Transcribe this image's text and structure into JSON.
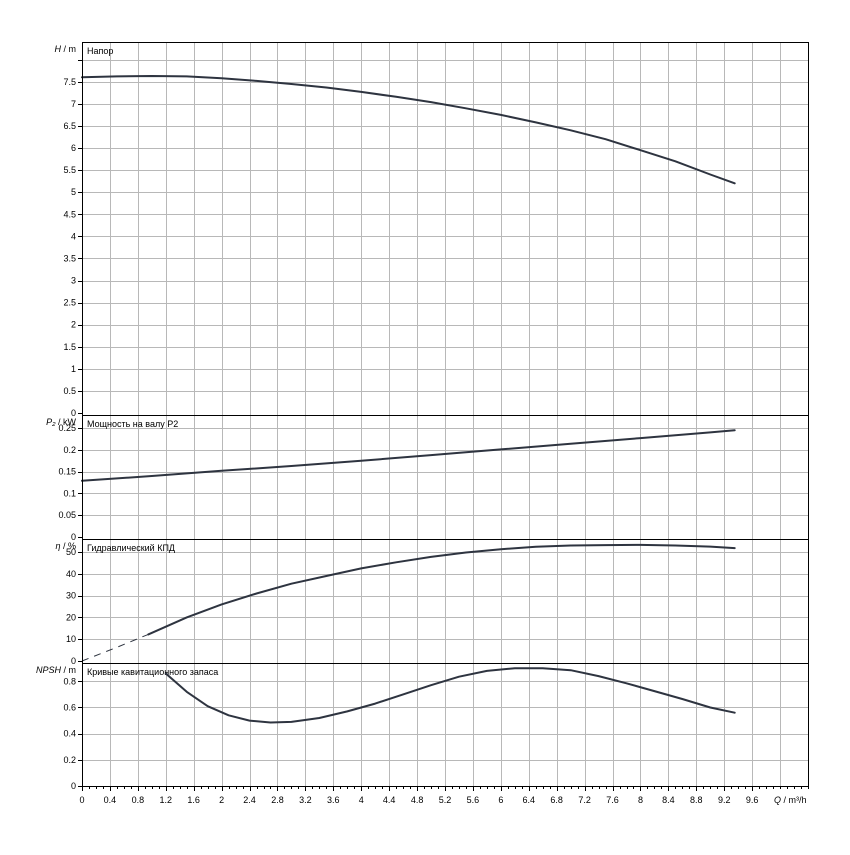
{
  "chart_data": {
    "type": "line",
    "x_axis": {
      "label_var": "Q",
      "label_unit": "m³/h",
      "range": [
        0,
        10.4
      ],
      "tick_labels": [
        "0",
        "0.4",
        "0.8",
        "1.2",
        "1.6",
        "2",
        "2.4",
        "2.8",
        "3.2",
        "3.6",
        "4",
        "4.4",
        "4.8",
        "5.2",
        "5.6",
        "6",
        "6.4",
        "6.8",
        "7.2",
        "7.6",
        "8",
        "8.4",
        "8.8",
        "9.2",
        "9.6"
      ],
      "grid_step": 0.4
    },
    "panels": [
      {
        "id": "head",
        "title": "Напор",
        "ylabel_var": "H",
        "ylabel_unit": "m",
        "ylim": [
          0,
          8.4
        ],
        "tick_step": 0.5,
        "tick_labels": [
          "0",
          "0.5",
          "1",
          "1.5",
          "2",
          "2.5",
          "3",
          "3.5",
          "4",
          "4.5",
          "5",
          "5.5",
          "6",
          "6.5",
          "7",
          "7.5"
        ],
        "series": [
          {
            "style": "solid",
            "x": [
              0,
              0.5,
              1,
              1.5,
              2,
              2.5,
              3,
              3.5,
              4,
              4.5,
              5,
              5.5,
              6,
              6.5,
              7,
              7.5,
              8,
              8.5,
              9,
              9.35
            ],
            "y": [
              7.6,
              7.62,
              7.63,
              7.62,
              7.58,
              7.52,
              7.45,
              7.37,
              7.27,
              7.16,
              7.04,
              6.9,
              6.75,
              6.58,
              6.4,
              6.2,
              5.95,
              5.7,
              5.4,
              5.2
            ]
          }
        ]
      },
      {
        "id": "power",
        "title": "Мощность на валу P2",
        "ylabel_var": "P₂",
        "ylabel_unit": "kW",
        "ylim": [
          0,
          0.28
        ],
        "tick_step": 0.05,
        "tick_labels": [
          "0",
          "0.05",
          "0.1",
          "0.15",
          "0.2",
          "0.25"
        ],
        "series": [
          {
            "style": "solid",
            "x": [
              0,
              1,
              2,
              3,
              4,
              5,
              6,
              7,
              8,
              9,
              9.35
            ],
            "y": [
              0.129,
              0.14,
              0.152,
              0.163,
              0.175,
              0.188,
              0.201,
              0.214,
              0.227,
              0.24,
              0.245
            ]
          }
        ]
      },
      {
        "id": "efficiency",
        "title": "Гидравлический КПД",
        "ylabel_var": "η",
        "ylabel_unit": "%",
        "ylim": [
          0,
          56
        ],
        "tick_step": 10,
        "tick_labels": [
          "0",
          "10",
          "20",
          "30",
          "40",
          "50"
        ],
        "series": [
          {
            "style": "dashed",
            "x": [
              0,
              0.5,
              0.95
            ],
            "y": [
              0,
              6.3,
              12.2
            ]
          },
          {
            "style": "solid",
            "x": [
              0.95,
              1.5,
              2,
              2.5,
              3,
              3.5,
              4,
              4.5,
              5,
              5.5,
              6,
              6.5,
              7,
              7.5,
              8,
              8.5,
              9,
              9.35
            ],
            "y": [
              12.2,
              20,
              26,
              31,
              35.5,
              39,
              42.5,
              45.3,
              47.8,
              49.8,
              51.3,
              52.4,
              53,
              53.2,
              53.3,
              53,
              52.5,
              51.8
            ]
          }
        ]
      },
      {
        "id": "npsh",
        "title": "Кривые кавитационного запаса",
        "ylabel_var": "NPSH",
        "ylabel_unit": "m",
        "ylim": [
          0,
          0.94
        ],
        "tick_step": 0.2,
        "tick_labels": [
          "0",
          "0.2",
          "0.4",
          "0.6",
          "0.8"
        ],
        "series": [
          {
            "style": "solid",
            "x": [
              1.2,
              1.5,
              1.8,
              2.1,
              2.4,
              2.7,
              3.0,
              3.4,
              3.8,
              4.2,
              4.6,
              5.0,
              5.4,
              5.8,
              6.2,
              6.6,
              7.0,
              7.4,
              7.8,
              8.2,
              8.6,
              9.0,
              9.35
            ],
            "y": [
              0.86,
              0.72,
              0.61,
              0.54,
              0.5,
              0.485,
              0.49,
              0.52,
              0.57,
              0.63,
              0.7,
              0.77,
              0.835,
              0.88,
              0.9,
              0.9,
              0.885,
              0.84,
              0.785,
              0.725,
              0.665,
              0.6,
              0.56
            ]
          }
        ]
      }
    ]
  }
}
